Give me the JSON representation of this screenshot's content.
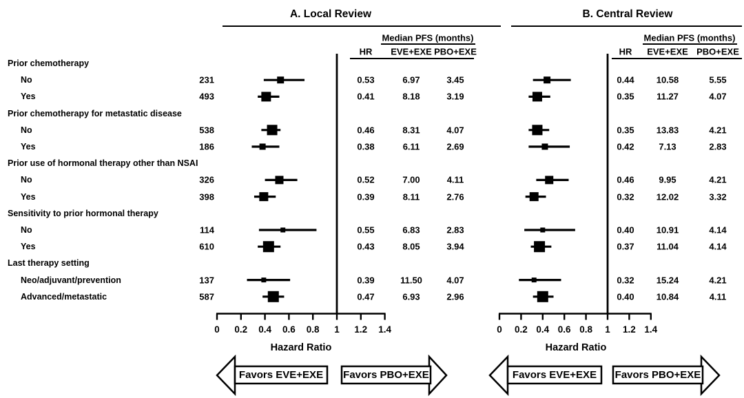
{
  "chart_data": {
    "type": "scatter",
    "subtype": "forest-plot",
    "axis": {
      "label": "Hazard Ratio",
      "ticks": [
        "0",
        "0.2",
        "0.4",
        "0.6",
        "0.8",
        "1",
        "1.2",
        "1.4"
      ],
      "range": [
        0,
        1.4
      ],
      "reference_line": 1
    },
    "arrows": {
      "left": "Favors EVE+EXE",
      "right": "Favors PBO+EXE"
    },
    "groups": [
      {
        "label": "Prior chemotherapy",
        "items": [
          {
            "label": "No",
            "n": 231
          },
          {
            "label": "Yes",
            "n": 493
          }
        ]
      },
      {
        "label": "Prior chemotherapy for metastatic disease",
        "items": [
          {
            "label": "No",
            "n": 538
          },
          {
            "label": "Yes",
            "n": 186
          }
        ]
      },
      {
        "label": "Prior use of hormonal therapy other than NSAI",
        "items": [
          {
            "label": "No",
            "n": 326
          },
          {
            "label": "Yes",
            "n": 398
          }
        ]
      },
      {
        "label": "Sensitivity to prior hormonal therapy",
        "items": [
          {
            "label": "No",
            "n": 114
          },
          {
            "label": "Yes",
            "n": 610
          }
        ]
      },
      {
        "label": "Last therapy setting",
        "items": [
          {
            "label": "Neo/adjuvant/prevention",
            "n": 137
          },
          {
            "label": "Advanced/metastatic",
            "n": 587
          }
        ]
      }
    ],
    "panels": [
      {
        "title": "A. Local Review",
        "pfs_header": "Median PFS (months)",
        "col_hr": "HR",
        "col_eve": "EVE+EXE",
        "col_pbo": "PBO+EXE",
        "axis_label": "Hazard Ratio",
        "rows": [
          {
            "hr": "0.53",
            "ci": [
              0.39,
              0.73
            ],
            "eve": "6.97",
            "pbo": "3.45"
          },
          {
            "hr": "0.41",
            "ci": [
              0.34,
              0.52
            ],
            "eve": "8.18",
            "pbo": "3.19"
          },
          {
            "hr": "0.46",
            "ci": [
              0.37,
              0.53
            ],
            "eve": "8.31",
            "pbo": "4.07"
          },
          {
            "hr": "0.38",
            "ci": [
              0.29,
              0.52
            ],
            "eve": "6.11",
            "pbo": "2.69"
          },
          {
            "hr": "0.52",
            "ci": [
              0.4,
              0.67
            ],
            "eve": "7.00",
            "pbo": "4.11"
          },
          {
            "hr": "0.39",
            "ci": [
              0.31,
              0.49
            ],
            "eve": "8.11",
            "pbo": "2.76"
          },
          {
            "hr": "0.55",
            "ci": [
              0.35,
              0.83
            ],
            "eve": "6.83",
            "pbo": "2.83"
          },
          {
            "hr": "0.43",
            "ci": [
              0.34,
              0.53
            ],
            "eve": "8.05",
            "pbo": "3.94"
          },
          {
            "hr": "0.39",
            "ci": [
              0.25,
              0.61
            ],
            "eve": "11.50",
            "pbo": "4.07"
          },
          {
            "hr": "0.47",
            "ci": [
              0.38,
              0.56
            ],
            "eve": "6.93",
            "pbo": "2.96"
          }
        ]
      },
      {
        "title": "B. Central Review",
        "pfs_header": "Median PFS (months)",
        "col_hr": "HR",
        "col_eve": "EVE+EXE",
        "col_pbo": "PBO+EXE",
        "axis_label": "Hazard Ratio",
        "rows": [
          {
            "hr": "0.44",
            "ci": [
              0.31,
              0.66
            ],
            "eve": "10.58",
            "pbo": "5.55"
          },
          {
            "hr": "0.35",
            "ci": [
              0.27,
              0.47
            ],
            "eve": "11.27",
            "pbo": "4.07"
          },
          {
            "hr": "0.35",
            "ci": [
              0.27,
              0.46
            ],
            "eve": "13.83",
            "pbo": "4.21"
          },
          {
            "hr": "0.42",
            "ci": [
              0.27,
              0.65
            ],
            "eve": "7.13",
            "pbo": "2.83"
          },
          {
            "hr": "0.46",
            "ci": [
              0.34,
              0.64
            ],
            "eve": "9.95",
            "pbo": "4.21"
          },
          {
            "hr": "0.32",
            "ci": [
              0.24,
              0.43
            ],
            "eve": "12.02",
            "pbo": "3.32"
          },
          {
            "hr": "0.40",
            "ci": [
              0.23,
              0.7
            ],
            "eve": "10.91",
            "pbo": "4.14"
          },
          {
            "hr": "0.37",
            "ci": [
              0.29,
              0.48
            ],
            "eve": "11.04",
            "pbo": "4.14"
          },
          {
            "hr": "0.32",
            "ci": [
              0.18,
              0.57
            ],
            "eve": "15.24",
            "pbo": "4.21"
          },
          {
            "hr": "0.40",
            "ci": [
              0.31,
              0.5
            ],
            "eve": "10.84",
            "pbo": "4.11"
          }
        ]
      }
    ]
  }
}
